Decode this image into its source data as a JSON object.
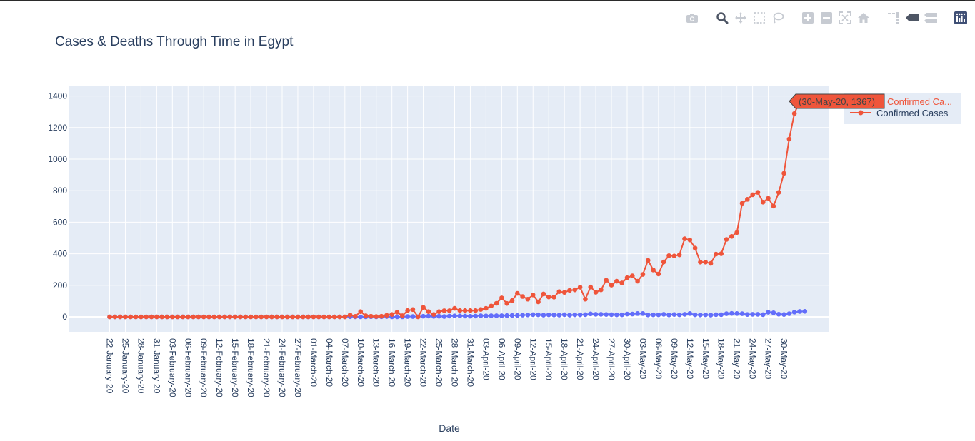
{
  "title": "Cases & Deaths Through Time in Egypt",
  "modebar": {
    "buttons": [
      "camera-icon",
      "zoom-icon",
      "pan-icon",
      "box-select-icon",
      "lasso-icon",
      "zoom-in-icon",
      "zoom-out-icon",
      "autoscale-icon",
      "reset-axes-icon",
      "spike-lines-icon",
      "hover-closest-icon",
      "hover-compare-icon",
      "plotly-logo-icon"
    ]
  },
  "legend": {
    "entry_2": "Confirmed Cases"
  },
  "hover": {
    "text": "(30-May-20, 1367)",
    "name": "Confirmed Ca..."
  },
  "colors": {
    "confirmed": "#EF553B",
    "deaths": "#636EFA",
    "plot_bg": "#E5ECF6",
    "grid": "#ffffff",
    "text": "#2a3f5f",
    "hover_bg": "#EF553B"
  },
  "chart_data": {
    "type": "line",
    "title": "Cases & Deaths Through Time in Egypt",
    "xlabel": "Date",
    "ylabel": "",
    "ylim": [
      -100,
      1450
    ],
    "yticks": [
      0,
      200,
      400,
      600,
      800,
      1000,
      1200,
      1400
    ],
    "grid": true,
    "legend_position": "top-right",
    "x_start": "22-January-20",
    "x_end": "30-May-20",
    "xticks": [
      "22-January-20",
      "25-January-20",
      "28-January-20",
      "31-January-20",
      "03-February-20",
      "06-February-20",
      "09-February-20",
      "12-February-20",
      "15-February-20",
      "18-February-20",
      "21-February-20",
      "24-February-20",
      "27-February-20",
      "01-March-20",
      "04-March-20",
      "07-March-20",
      "10-March-20",
      "13-March-20",
      "16-March-20",
      "19-March-20",
      "22-March-20",
      "25-March-20",
      "28-March-20",
      "31-March-20",
      "03-April-20",
      "06-April-20",
      "09-April-20",
      "12-April-20",
      "15-April-20",
      "18-April-20",
      "21-April-20",
      "24-April-20",
      "27-April-20",
      "30-April-20",
      "03-May-20",
      "06-May-20",
      "09-May-20",
      "12-May-20",
      "15-May-20",
      "18-May-20",
      "21-May-20",
      "24-May-20",
      "27-May-20",
      "30-May-20"
    ],
    "series": [
      {
        "name": "",
        "values": [
          0,
          0,
          0,
          0,
          0,
          0,
          0,
          0,
          0,
          0,
          0,
          0,
          0,
          0,
          0,
          0,
          0,
          0,
          0,
          0,
          0,
          0,
          0,
          0,
          0,
          0,
          0,
          0,
          0,
          0,
          0,
          0,
          0,
          0,
          0,
          0,
          0,
          0,
          0,
          0,
          0,
          0,
          0,
          0,
          0,
          0,
          1,
          0,
          0,
          0,
          1,
          0,
          1,
          2,
          0,
          0,
          0,
          2,
          2,
          1,
          4,
          5,
          3,
          4,
          2,
          5,
          6,
          6,
          5,
          4,
          5,
          7,
          6,
          7,
          7,
          7,
          8,
          9,
          9,
          11,
          12,
          14,
          13,
          11,
          13,
          12,
          11,
          14,
          11,
          13,
          13,
          14,
          19,
          16,
          16,
          15,
          14,
          13,
          13,
          18,
          18,
          21,
          21,
          12,
          13,
          13,
          16,
          12,
          15,
          13,
          16,
          21,
          13,
          12,
          13,
          11,
          14,
          14,
          20,
          22,
          21,
          20,
          15,
          16,
          16,
          14,
          29,
          26,
          17,
          15,
          20,
          30,
          34,
          35
        ]
      },
      {
        "name": "Confirmed Cases",
        "values": [
          0,
          0,
          0,
          0,
          0,
          0,
          0,
          0,
          0,
          0,
          0,
          0,
          0,
          0,
          0,
          0,
          0,
          0,
          0,
          0,
          0,
          0,
          0,
          0,
          0,
          0,
          0,
          0,
          0,
          0,
          0,
          0,
          0,
          0,
          0,
          0,
          0,
          0,
          0,
          0,
          0,
          0,
          0,
          0,
          0,
          0,
          12,
          3,
          33,
          7,
          4,
          2,
          4,
          10,
          15,
          30,
          7,
          40,
          46,
          0,
          60,
          33,
          15,
          33,
          39,
          39,
          54,
          40,
          40,
          40,
          40,
          47,
          54,
          69,
          86,
          120,
          85,
          103,
          149,
          129,
          112,
          139,
          95,
          145,
          126,
          125,
          160,
          155,
          168,
          171,
          188,
          112,
          189,
          156,
          171,
          232,
          201,
          226,
          215,
          248,
          260,
          226,
          269,
          358,
          297,
          272,
          348,
          388,
          386,
          393,
          495,
          488,
          436,
          347,
          347,
          339,
          398,
          400,
          491,
          510,
          535,
          720,
          745,
          774,
          789,
          727,
          752,
          702,
          789,
          910,
          1127,
          1289,
          1367
        ]
      }
    ]
  }
}
